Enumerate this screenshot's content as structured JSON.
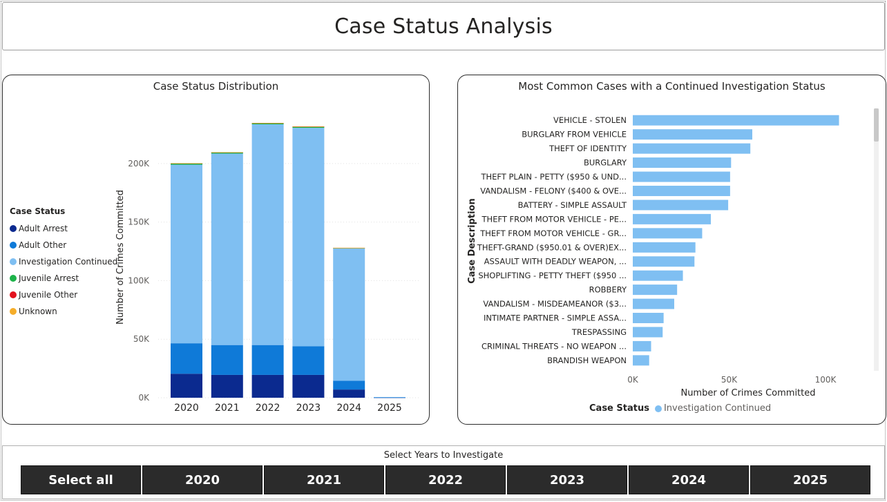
{
  "page": {
    "title": "Case Status Analysis"
  },
  "colors": {
    "adult_arrest": "#12239e",
    "adult_other": "#118dff",
    "investigation_continued": "#7fbff5",
    "juvenile_arrest": "#1aab40",
    "juvenile_other": "#d64550",
    "unknown": "#e8a838"
  },
  "left_chart": {
    "title": "Case Status Distribution",
    "legend_title": "Case Status",
    "legend": [
      {
        "label": "Adult Arrest",
        "color": "#0b2a8f"
      },
      {
        "label": "Adult Other",
        "color": "#0f7ad8"
      },
      {
        "label": "Investigation Continued",
        "color": "#7fbff2"
      },
      {
        "label": "Juvenile Arrest",
        "color": "#1db34a"
      },
      {
        "label": "Juvenile Other",
        "color": "#e3121e"
      },
      {
        "label": "Unknown",
        "color": "#f5ad2a"
      }
    ]
  },
  "right_chart": {
    "title": "Most Common Cases with a Continued Investigation Status",
    "legend_title": "Case Status",
    "legend_item": "Investigation Continued"
  },
  "chart_data": [
    {
      "type": "bar",
      "stacked": true,
      "title": "Case Status Distribution",
      "xlabel": "",
      "ylabel": "Number of Crimes Committed",
      "categories": [
        "2020",
        "2021",
        "2022",
        "2023",
        "2024",
        "2025"
      ],
      "ylim": [
        0,
        240000
      ],
      "yticks": [
        0,
        50000,
        100000,
        150000,
        200000
      ],
      "ytick_labels": [
        "0K",
        "50K",
        "100K",
        "150K",
        "200K"
      ],
      "grid": true,
      "legend_position": "left",
      "series": [
        {
          "name": "Adult Arrest",
          "values": [
            20500,
            19500,
            19500,
            19500,
            7000,
            150
          ]
        },
        {
          "name": "Adult Other",
          "values": [
            26000,
            25500,
            25500,
            24500,
            7500,
            150
          ]
        },
        {
          "name": "Investigation Continued",
          "values": [
            152500,
            163500,
            188500,
            186500,
            113000,
            300
          ]
        },
        {
          "name": "Juvenile Arrest",
          "values": [
            1000,
            900,
            900,
            900,
            400,
            0
          ]
        },
        {
          "name": "Juvenile Other",
          "values": [
            200,
            200,
            200,
            200,
            100,
            0
          ]
        },
        {
          "name": "Unknown",
          "values": [
            100,
            100,
            100,
            100,
            50,
            0
          ]
        }
      ]
    },
    {
      "type": "bar",
      "orientation": "horizontal",
      "title": "Most Common Cases with a Continued Investigation Status",
      "xlabel": "Number of Crimes Committed",
      "ylabel": "Case Description",
      "xlim": [
        0,
        115000
      ],
      "xticks": [
        0,
        50000,
        100000
      ],
      "xtick_labels": [
        "0K",
        "50K",
        "100K"
      ],
      "grid": false,
      "legend_position": "bottom",
      "categories": [
        "VEHICLE - STOLEN",
        "BURGLARY FROM VEHICLE",
        "THEFT OF IDENTITY",
        "BURGLARY",
        "THEFT PLAIN - PETTY ($950 & UND...",
        "VANDALISM - FELONY ($400 & OVE...",
        "BATTERY - SIMPLE ASSAULT",
        "THEFT FROM MOTOR VEHICLE - PE...",
        "THEFT FROM MOTOR VEHICLE - GR...",
        "THEFT-GRAND ($950.01 & OVER)EX...",
        "ASSAULT WITH DEADLY WEAPON, ...",
        "SHOPLIFTING - PETTY THEFT ($950 ...",
        "ROBBERY",
        "VANDALISM - MISDEAMEANOR ($3...",
        "INTIMATE PARTNER - SIMPLE ASSA...",
        "TRESPASSING",
        "CRIMINAL THREATS - NO WEAPON ...",
        "BRANDISH WEAPON"
      ],
      "series": [
        {
          "name": "Investigation Continued",
          "values": [
            107000,
            62000,
            61000,
            51000,
            50500,
            50500,
            49500,
            40500,
            36000,
            32500,
            32000,
            26000,
            23000,
            21500,
            16000,
            15500,
            9500,
            8500
          ]
        }
      ]
    }
  ],
  "slicer": {
    "title": "Select Years to Investigate",
    "buttons": [
      "Select all",
      "2020",
      "2021",
      "2022",
      "2023",
      "2024",
      "2025"
    ]
  }
}
